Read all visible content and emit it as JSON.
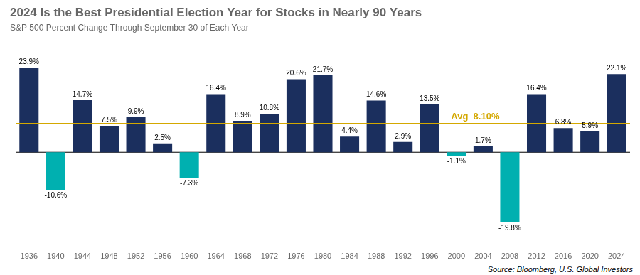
{
  "chart_data": {
    "type": "bar",
    "title": "2024 Is the Best Presidential Election Year for Stocks in Nearly 90 Years",
    "subtitle": "S&P 500 Percent Change Through September 30 of Each Year",
    "source": "Source: Bloomberg, U.S. Global Investors",
    "categories": [
      "1936",
      "1940",
      "1944",
      "1948",
      "1952",
      "1956",
      "1960",
      "1964",
      "1968",
      "1972",
      "1976",
      "1980",
      "1984",
      "1988",
      "1992",
      "1996",
      "2000",
      "2004",
      "2008",
      "2012",
      "2016",
      "2020",
      "2024"
    ],
    "values": [
      23.9,
      -10.6,
      14.7,
      7.5,
      9.9,
      2.5,
      -7.3,
      16.4,
      8.9,
      10.8,
      20.6,
      21.7,
      4.4,
      14.6,
      2.9,
      13.5,
      -1.1,
      1.7,
      -19.8,
      16.4,
      6.8,
      5.9,
      22.1
    ],
    "value_labels": [
      "23.9%",
      "-10.6%",
      "14.7%",
      "7.5%",
      "9.9%",
      "2.5%",
      "-7.3%",
      "16.4%",
      "8.9%",
      "10.8%",
      "20.6%",
      "21.7%",
      "4.4%",
      "14.6%",
      "2.9%",
      "13.5%",
      "-1.1%",
      "1.7%",
      "-19.8%",
      "16.4%",
      "6.8%",
      "5.9%",
      "22.1%"
    ],
    "colors": [
      "#1b2f5e",
      "#00b0b0",
      "#1b2f5e",
      "#1b2f5e",
      "#1b2f5e",
      "#1b2f5e",
      "#00b0b0",
      "#1b2f5e",
      "#1b2f5e",
      "#1b2f5e",
      "#1b2f5e",
      "#1b2f5e",
      "#1b2f5e",
      "#1b2f5e",
      "#1b2f5e",
      "#1b2f5e",
      "#00b0b0",
      "#1b2f5e",
      "#00b0b0",
      "#1b2f5e",
      "#1b2f5e",
      "#1b2f5e",
      "#1b2f5e"
    ],
    "avg_line": {
      "value": 8.1,
      "label": "Avg  8.10%",
      "color": "#d4a800"
    },
    "ylim": [
      -26,
      32
    ],
    "grid": false,
    "tick_labels": "x",
    "data_labels": true
  }
}
